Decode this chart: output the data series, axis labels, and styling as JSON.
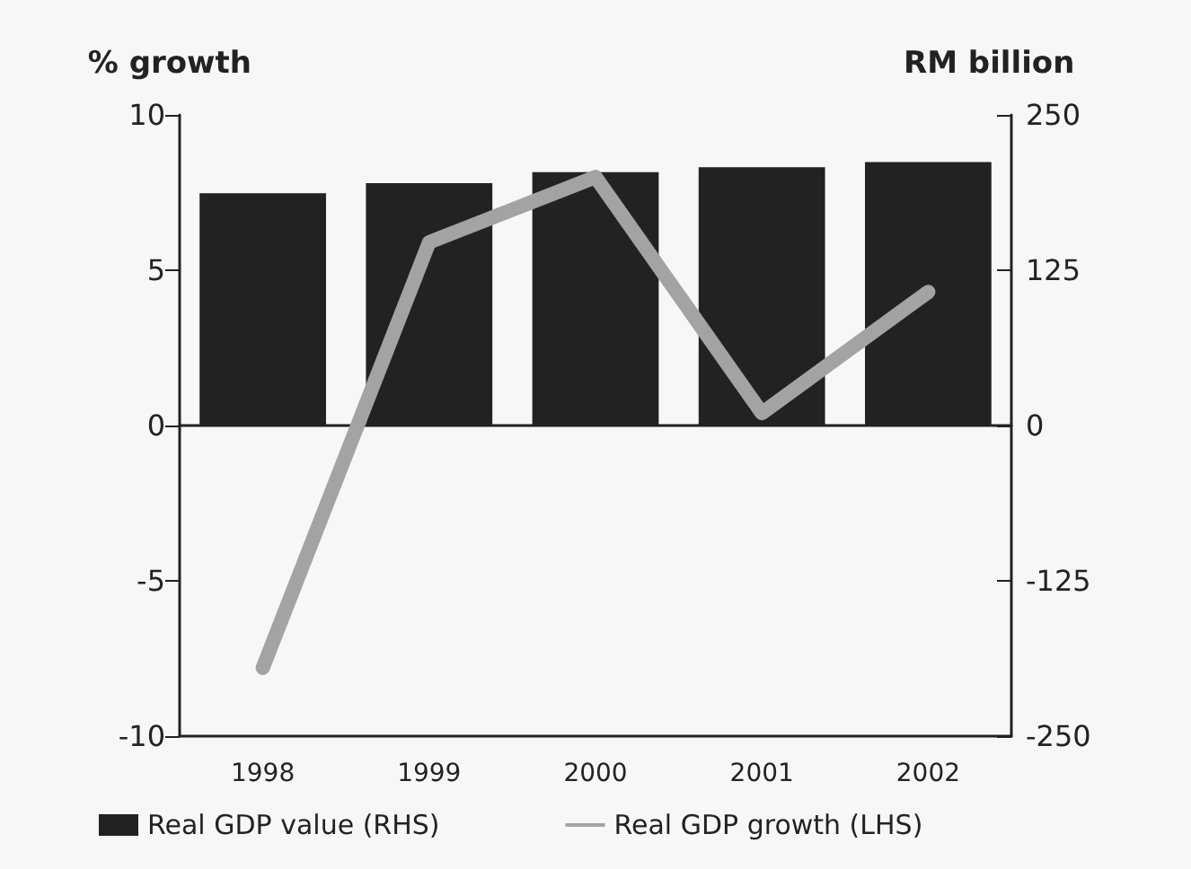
{
  "chart_data": {
    "type": "bar",
    "ylabel": "% growth",
    "y2label": "RM billion",
    "categories": [
      "1998",
      "1999",
      "2000",
      "2001",
      "2002"
    ],
    "series": [
      {
        "name": "Real GDP value (RHS)",
        "axis": "y2",
        "color": "#222222",
        "values": [
          187,
          195,
          204,
          208,
          212
        ]
      },
      {
        "name": "Real GDP growth (LHS)",
        "type": "line",
        "color": "#a3a3a3",
        "marker": "none",
        "values": [
          -7.8,
          5.9,
          8.0,
          0.4,
          4.3
        ]
      }
    ],
    "ylim": [
      -10,
      10
    ],
    "yticks": [
      -10,
      -5,
      0,
      5,
      10
    ],
    "y2lim": [
      -250,
      250
    ],
    "y2ticks": [
      -250,
      -125,
      0,
      125,
      250
    ],
    "legend": "bottom"
  }
}
